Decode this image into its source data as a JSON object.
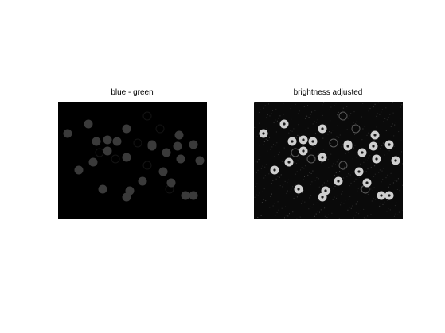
{
  "figure": {
    "background": "#ffffff",
    "panels": [
      {
        "id": "left",
        "title": "blue - green",
        "image": {
          "content": "grayscale image of scattered round objects on dark background, low brightness",
          "background": "#000000",
          "object_color": "#3a3a3a"
        }
      },
      {
        "id": "right",
        "title": "brightness adjusted",
        "image": {
          "content": "same scene with brightness increased; bright round objects with dark spots and faint ring outlines",
          "background": "#0a0a0a",
          "object_color": "#cfcfcf"
        }
      }
    ]
  }
}
